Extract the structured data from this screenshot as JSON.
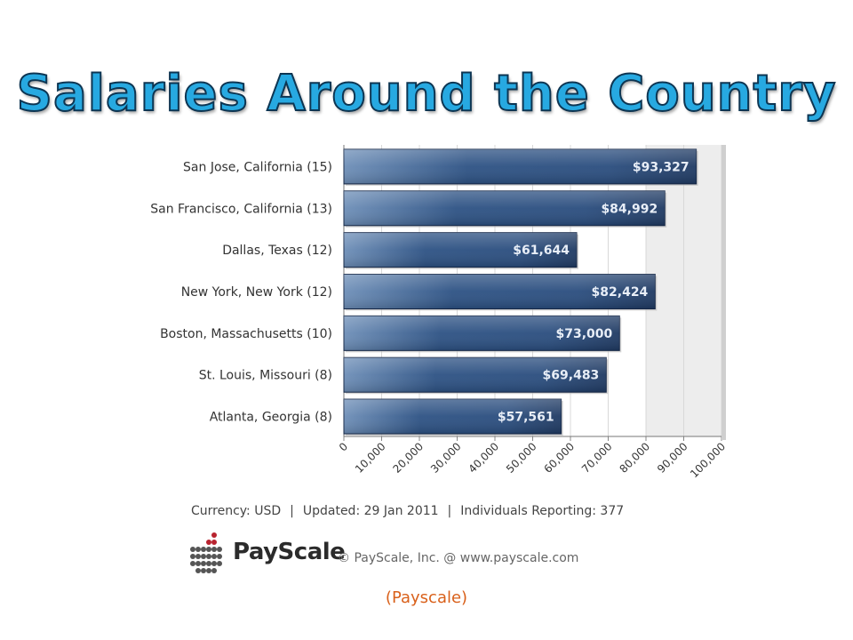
{
  "title": "Salaries Around the Country",
  "chart_data": {
    "type": "bar",
    "orientation": "horizontal",
    "categories": [
      "San Jose, California (15)",
      "San Francisco, California (13)",
      "Dallas, Texas (12)",
      "New York, New York (12)",
      "Boston, Massachusetts (10)",
      "St. Louis, Missouri (8)",
      "Atlanta, Georgia (8)"
    ],
    "values": [
      93327,
      84992,
      61644,
      82424,
      73000,
      69483,
      57561
    ],
    "value_labels": [
      "$93,327",
      "$84,992",
      "$61,644",
      "$82,424",
      "$73,000",
      "$69,483",
      "$57,561"
    ],
    "x_ticks": [
      "0",
      "10,000",
      "20,000",
      "30,000",
      "40,000",
      "50,000",
      "60,000",
      "70,000",
      "80,000",
      "90,000",
      "100,000"
    ],
    "xlim": [
      0,
      100000
    ],
    "bar_color": "#2c4e7c",
    "shaded_band": [
      80000,
      100000
    ]
  },
  "footer": {
    "currency": "Currency: USD",
    "updated": "Updated: 29 Jan 2011",
    "reporting": "Individuals Reporting: 377",
    "separator": "|"
  },
  "brand": {
    "name": "PayScale",
    "copyright": "© PayScale, Inc. @ www.payscale.com"
  },
  "source": "(Payscale)"
}
